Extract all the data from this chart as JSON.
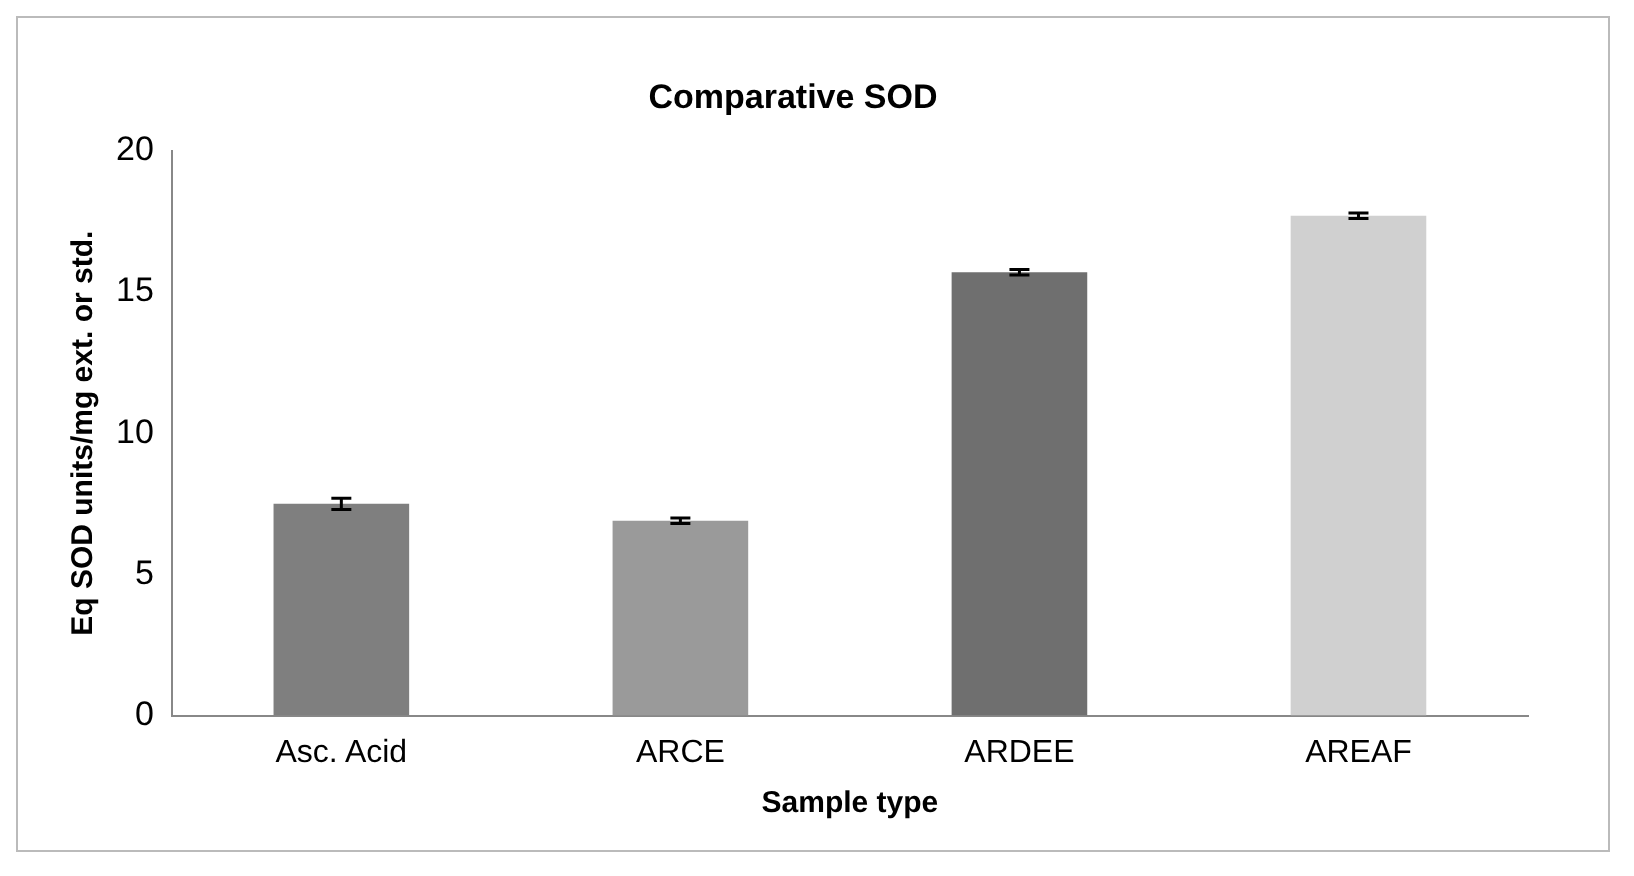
{
  "chart_data": {
    "type": "bar",
    "title": "Comparative SOD",
    "xlabel": "Sample type",
    "ylabel": "Eq SOD units/mg ext. or std.",
    "categories": [
      "Asc. Acid",
      "ARCE",
      "ARDEE",
      "AREAF"
    ],
    "values": [
      7.5,
      6.9,
      15.7,
      17.7
    ],
    "errors": [
      0.2,
      0.1,
      0.1,
      0.1
    ],
    "colors": [
      "#7f7f7f",
      "#9a9a9a",
      "#6f6f6f",
      "#d0d0d0"
    ],
    "ylim": [
      0,
      20
    ],
    "yticks": [
      0,
      5,
      10,
      15,
      20
    ],
    "grid": false,
    "legend": false
  }
}
